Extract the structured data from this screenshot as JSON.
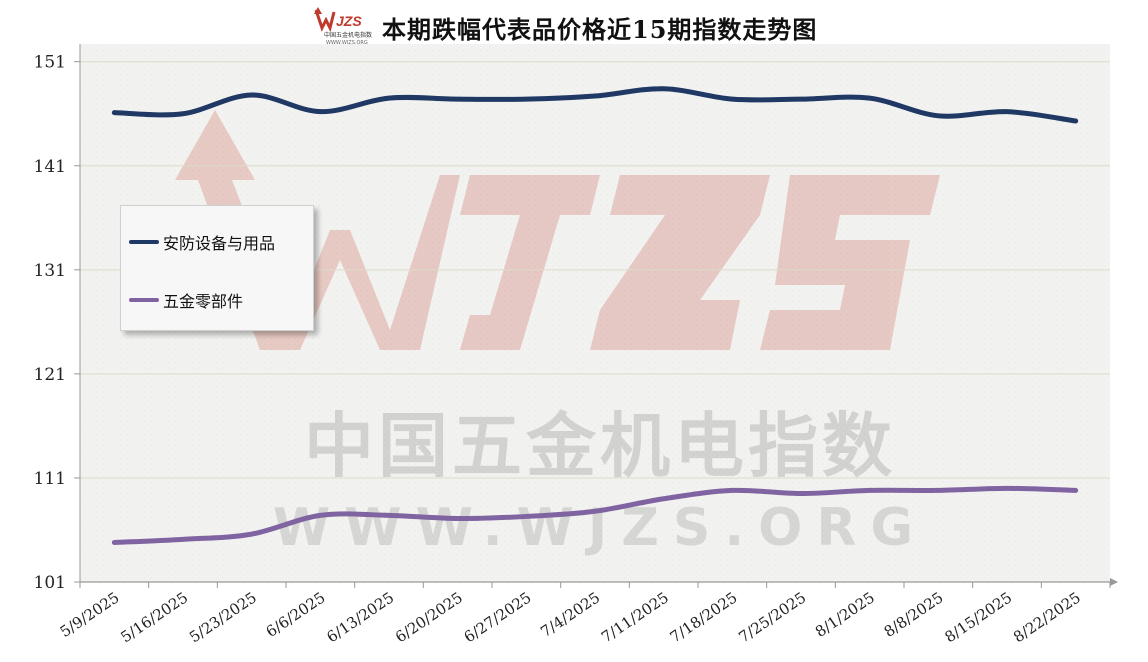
{
  "logo": {
    "text": "WJZS",
    "subtext": "中国五金机电指数",
    "url_text": "WWW.WJZS.ORG"
  },
  "chart_data": {
    "type": "line",
    "title": "本期跌幅代表品价格近15期指数走势图",
    "xlabel": "",
    "ylabel": "",
    "categories": [
      "5/9/2025",
      "5/16/2025",
      "5/23/2025",
      "6/6/2025",
      "6/13/2025",
      "6/20/2025",
      "6/27/2025",
      "7/4/2025",
      "7/11/2025",
      "7/18/2025",
      "7/25/2025",
      "8/1/2025",
      "8/8/2025",
      "8/15/2025",
      "8/22/2025"
    ],
    "y_ticks": [
      101,
      111,
      121,
      131,
      141,
      151
    ],
    "ylim": [
      101,
      152.7
    ],
    "grid": true,
    "legend_position": "left-middle",
    "watermark": {
      "main": "WJZS",
      "line1": "中国五金机电指数",
      "line2": "WWW.WJZS.ORG"
    },
    "series": [
      {
        "name": "安防设备与用品",
        "color": "#1f3864",
        "values": [
          146.1,
          146.0,
          147.8,
          146.2,
          147.5,
          147.4,
          147.4,
          147.7,
          148.4,
          147.4,
          147.4,
          147.5,
          145.8,
          146.2,
          145.3
        ]
      },
      {
        "name": "五金零部件",
        "color": "#8064a2",
        "values": [
          104.8,
          105.1,
          105.6,
          107.4,
          107.4,
          107.1,
          107.3,
          107.8,
          109.0,
          109.8,
          109.5,
          109.8,
          109.8,
          110.0,
          109.8
        ]
      }
    ]
  }
}
